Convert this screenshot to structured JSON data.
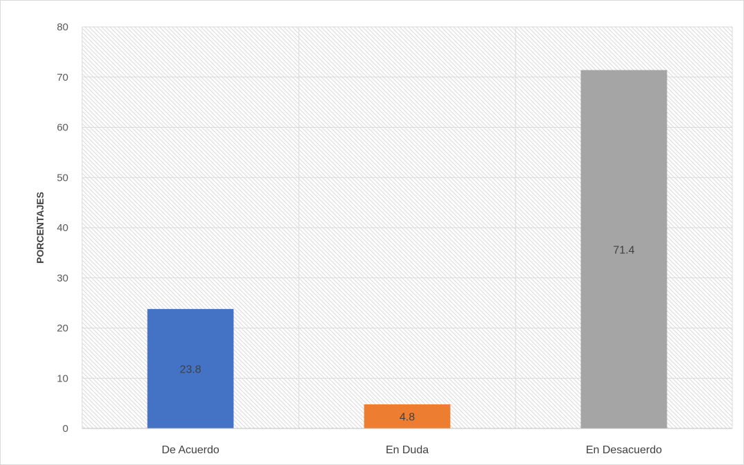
{
  "chart_data": {
    "type": "bar",
    "categories": [
      "De Acuerdo",
      "En Duda",
      "En Desacuerdo"
    ],
    "values": [
      23.8,
      4.8,
      71.4
    ],
    "data_labels": [
      "23.8",
      "4.8",
      "71.4"
    ],
    "colors": [
      "#4472c4",
      "#ed7d31",
      "#a5a5a5"
    ],
    "title": "",
    "xlabel": "",
    "ylabel": "PORCENTAJES",
    "ylim": [
      0,
      80
    ],
    "yticks": [
      0,
      10,
      20,
      30,
      40,
      50,
      60,
      70,
      80
    ],
    "ytick_labels": [
      "0",
      "10",
      "20",
      "30",
      "40",
      "50",
      "60",
      "70",
      "80"
    ],
    "grid": true,
    "plot_background": "diagonal-hatch",
    "legend": "none"
  }
}
